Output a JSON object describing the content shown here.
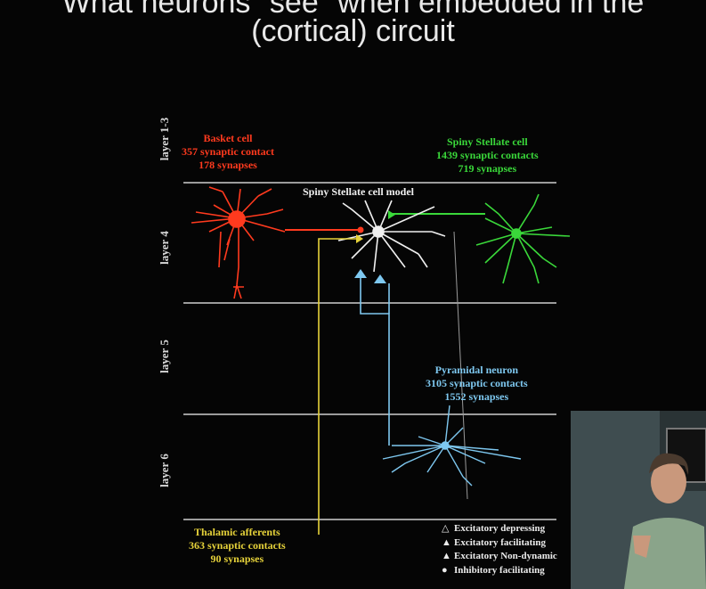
{
  "title": {
    "line1": "What neurons \"see\" when embedded in the",
    "line2": "(cortical) circuit"
  },
  "layers": [
    "layer 1-3",
    "layer 4",
    "layer 5",
    "layer 6"
  ],
  "cells": {
    "basket": {
      "name": "Basket cell",
      "contacts": "357 synaptic contact",
      "synapses": "178 synapses"
    },
    "spiny_green": {
      "name": "Spiny Stellate cell",
      "contacts": "1439 synaptic contacts",
      "synapses": "719 synapses"
    },
    "model": {
      "name": "Spiny Stellate cell model"
    },
    "pyramidal": {
      "name": "Pyramidal neuron",
      "contacts": "3105 synaptic contacts",
      "synapses": "1552 synapses"
    },
    "thalamic": {
      "name": "Thalamic afferents",
      "contacts": "363 synaptic contacts",
      "synapses": "90 synapses"
    }
  },
  "legend": [
    {
      "symbol": "△",
      "label": "Excitatory depressing"
    },
    {
      "symbol": "▲",
      "label": "Excitatory facilitating"
    },
    {
      "symbol": "▲",
      "label": "Excitatory Non-dynamic"
    },
    {
      "symbol": "●",
      "label": "Inhibitory facilitating"
    }
  ],
  "colors": {
    "basket": "#ff3a1e",
    "spiny_green": "#3ad83a",
    "pyramidal": "#7ec8f0",
    "thalamic": "#e6d23a",
    "model": "#f0f0f0"
  }
}
